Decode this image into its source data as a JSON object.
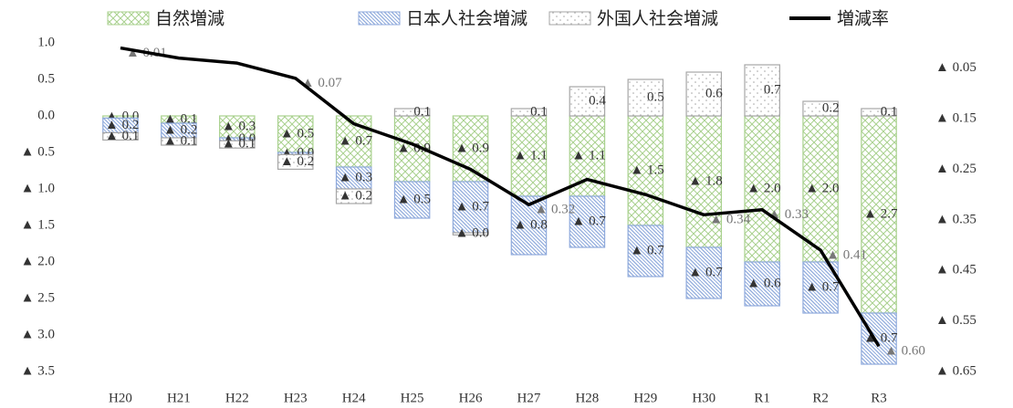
{
  "chart_data": {
    "type": "bar",
    "categories": [
      "H20",
      "H21",
      "H22",
      "H23",
      "H24",
      "H25",
      "H26",
      "H27",
      "H28",
      "H29",
      "H30",
      "R1",
      "R2",
      "R3"
    ],
    "series": [
      {
        "name": "自然増減",
        "color": "#a9d18e",
        "values": [
          -0.03,
          -0.1,
          -0.3,
          -0.5,
          -0.7,
          -0.9,
          -0.9,
          -1.1,
          -1.1,
          -1.5,
          -1.8,
          -2.0,
          -2.0,
          -2.7
        ],
        "value_labels": [
          "▲ 0.0",
          "▲ 0.1",
          "▲ 0.3",
          "▲ 0.5",
          "▲ 0.7",
          "▲ 0.9",
          "▲ 0.9",
          "▲ 1.1",
          "▲ 1.1",
          "▲ 1.5",
          "▲ 1.8",
          "▲ 2.0",
          "▲ 2.0",
          "▲ 2.7"
        ]
      },
      {
        "name": "日本人社会増減",
        "color": "#8faadc",
        "values": [
          -0.2,
          -0.2,
          -0.04,
          -0.03,
          -0.3,
          -0.5,
          -0.7,
          -0.8,
          -0.7,
          -0.7,
          -0.7,
          -0.6,
          -0.7,
          -0.7
        ],
        "value_labels": [
          "▲ 0.2",
          "▲ 0.2",
          "▲ 0.0",
          "▲ 0.0",
          "▲ 0.3",
          "▲ 0.5",
          "▲ 0.7",
          "▲ 0.8",
          "▲ 0.7",
          "▲ 0.7",
          "▲ 0.7",
          "▲ 0.6",
          "▲ 0.7",
          "▲ 0.7"
        ]
      },
      {
        "name": "外国人社会増減",
        "color": "#a6a6a6",
        "values": [
          -0.1,
          -0.1,
          -0.1,
          -0.2,
          -0.2,
          0.1,
          -0.03,
          0.1,
          0.4,
          0.5,
          0.6,
          0.7,
          0.2,
          0.1
        ],
        "value_labels": [
          "▲ 0.1",
          "▲ 0.1",
          "▲ 0.1",
          "▲ 0.2",
          "▲ 0.2",
          "0.1",
          "▲ 0.0",
          "0.1",
          "0.4",
          "0.5",
          "0.6",
          "0.7",
          "0.2",
          "0.1"
        ]
      },
      {
        "name": "増減率",
        "color": "#000000",
        "type": "line",
        "axis": "y2",
        "values": [
          -0.01,
          -0.03,
          -0.04,
          -0.07,
          -0.16,
          -0.2,
          -0.25,
          -0.32,
          -0.27,
          -0.3,
          -0.34,
          -0.33,
          -0.41,
          -0.6
        ],
        "value_labels": [
          "▲ 0.01",
          null,
          null,
          "▲ 0.07",
          null,
          null,
          null,
          "▲ 0.32",
          null,
          null,
          "▲ 0.34",
          "▲ 0.33",
          "▲ 0.41",
          "▲ 0.60"
        ]
      }
    ],
    "ylim": [
      -3.5,
      1.0
    ],
    "yticks": [
      {
        "value": 1.0,
        "label": "1.0"
      },
      {
        "value": 0.5,
        "label": "0.5"
      },
      {
        "value": 0,
        "label": "0.0"
      },
      {
        "value": -0.5,
        "label": "▲ 0.5"
      },
      {
        "value": -1.0,
        "label": "▲ 1.0"
      },
      {
        "value": -1.5,
        "label": "▲ 1.5"
      },
      {
        "value": -2.0,
        "label": "▲ 2.0"
      },
      {
        "value": -2.5,
        "label": "▲ 2.5"
      },
      {
        "value": -3.0,
        "label": "▲ 3.0"
      },
      {
        "value": -3.5,
        "label": "▲ 3.5"
      }
    ],
    "y2lim": [
      -0.65,
      0
    ],
    "y2ticks": [
      {
        "value": -0.05,
        "label": "▲ 0.05"
      },
      {
        "value": -0.15,
        "label": "▲ 0.15"
      },
      {
        "value": -0.25,
        "label": "▲ 0.25"
      },
      {
        "value": -0.35,
        "label": "▲ 0.35"
      },
      {
        "value": -0.45,
        "label": "▲ 0.45"
      },
      {
        "value": -0.55,
        "label": "▲ 0.55"
      },
      {
        "value": -0.65,
        "label": "▲ 0.65"
      }
    ],
    "legend": "top"
  }
}
